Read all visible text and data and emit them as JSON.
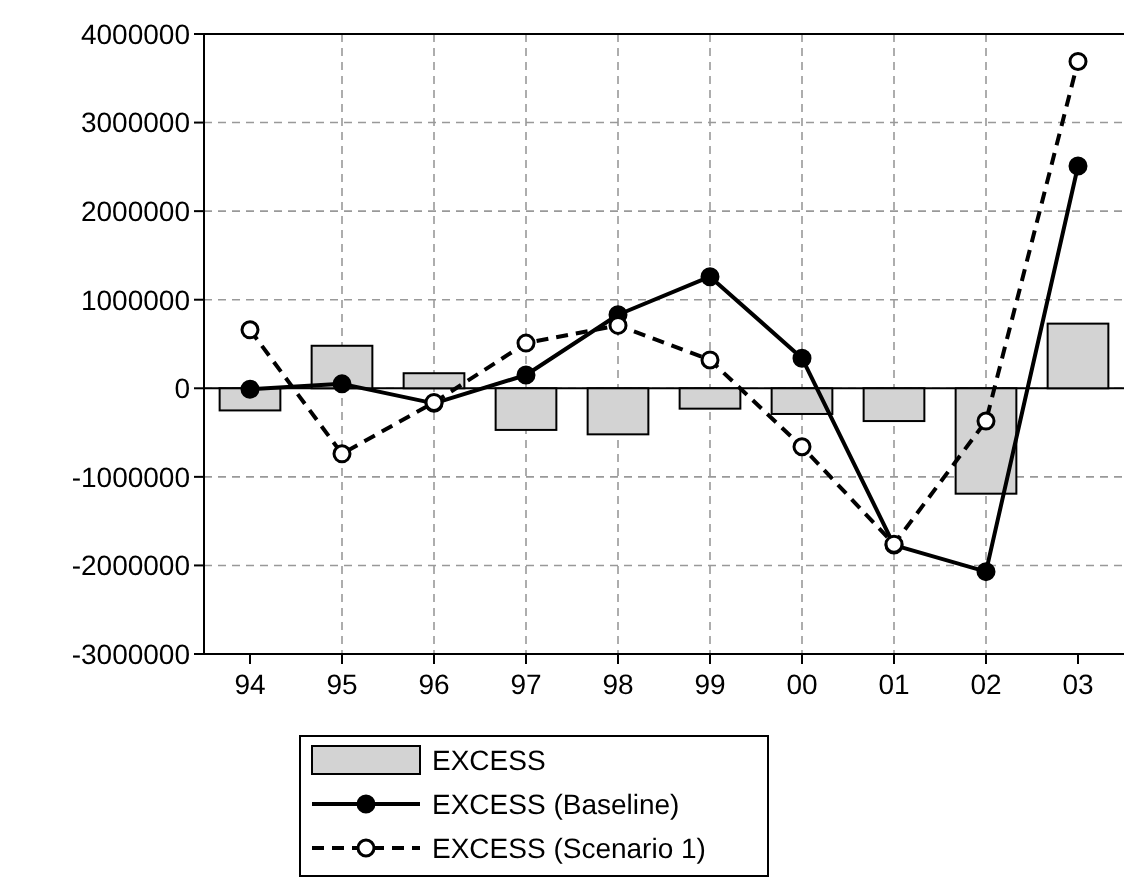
{
  "chart_data": {
    "type": "bar",
    "categories": [
      "94",
      "95",
      "96",
      "97",
      "98",
      "99",
      "00",
      "01",
      "02",
      "03"
    ],
    "series": [
      {
        "name": "EXCESS",
        "color": "#d3d3d3",
        "values": [
          -250000,
          480000,
          170000,
          -470000,
          -520000,
          -230000,
          -290000,
          -370000,
          -1190000,
          730000
        ]
      },
      {
        "name": "EXCESS (Baseline)",
        "type": "line",
        "color": "#000000",
        "marker": "circle",
        "line_style": "solid",
        "values": [
          -10000,
          50000,
          -170000,
          150000,
          830000,
          1260000,
          340000,
          -1770000,
          -2070000,
          2510000
        ]
      },
      {
        "name": "EXCESS (Scenario 1)",
        "type": "line",
        "color": "#000000",
        "marker": "circle",
        "line_style": "dashed",
        "values": [
          660000,
          -740000,
          -160000,
          510000,
          710000,
          320000,
          -660000,
          -1760000,
          -370000,
          3690000
        ]
      }
    ],
    "ylim": [
      -3000000,
      4000000
    ],
    "yticks": [
      -3000000,
      -2000000,
      -1000000,
      0,
      1000000,
      2000000,
      3000000,
      4000000
    ],
    "grid": true,
    "legend": "bottom"
  }
}
